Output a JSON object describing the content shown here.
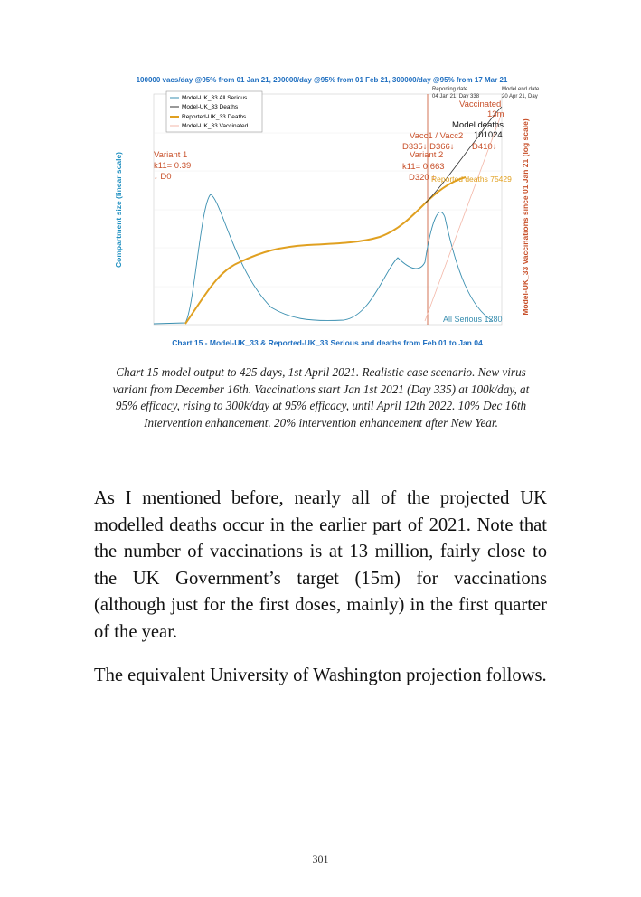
{
  "figure": {
    "header": "100000 vacs/day @95% from 01 Jan 21, 200000/day @95% from 01 Feb 21, 300000/day @95% from 17 Mar 21",
    "legend": [
      "Model-UK_33 All Serious",
      "Model-UK_33 Deaths",
      "Reported-UK_33 Deaths",
      "Model-UK_33 Vaccinated"
    ],
    "y_label": "Compartment size (linear scale)",
    "y2_label": "Model-UK_33 Vaccinations since 01 Jan 21 (log scale)",
    "annotations": {
      "variant1": "Variant 1",
      "variant1_k": "k11= 0.39",
      "variant1_d": "↓ D0",
      "variant2": "Variant 2",
      "variant2_k": "k11= 0.663",
      "variant2_d": "D320 ↓",
      "vacc": "Vacc1 / Vacc2",
      "vacc_days": "D335↓ D366↓",
      "vacc_end": "D410↓",
      "model_deaths": "Model deaths",
      "model_deaths_value": "101024",
      "vaccinated": "Vaccinated",
      "vaccinated_value": "13m",
      "reported_deaths": "Reported deaths 75429",
      "all_serious": "All Serious 1280",
      "reporting_date": "Reporting date",
      "reporting_date_value": "04 Jan 21, Day 338",
      "model_end": "Model end date",
      "model_end_value": "20 Apr 21, Day"
    },
    "chart_title": "Chart 15 - Model-UK_33 & Reported-UK_33 Serious and deaths from Feb 01 to Jan 04"
  },
  "caption": "Chart 15 model output to 425 days, 1st April 2021. Realistic case scenario. New virus variant from December 16th. Vaccinations start Jan 1st 2021 (Day 335) at 100k/day, at 95% efficacy, rising to 300k/day at 95% efficacy, until April 12th 2022. 10% Dec 16th Intervention enhancement. 20% intervention enhancement after New Year.",
  "paragraphs": [
    "As I mentioned before, nearly all of the projected UK modelled deaths occur in the earlier part of 2021. Note that the number of vaccinations is at 13 million, fairly close to the UK Government’s target (15m) for vaccinations (although just for the first doses, mainly) in the first quarter of the year.",
    "The equivalent University of Washington projection follows."
  ],
  "page_number": "301"
}
